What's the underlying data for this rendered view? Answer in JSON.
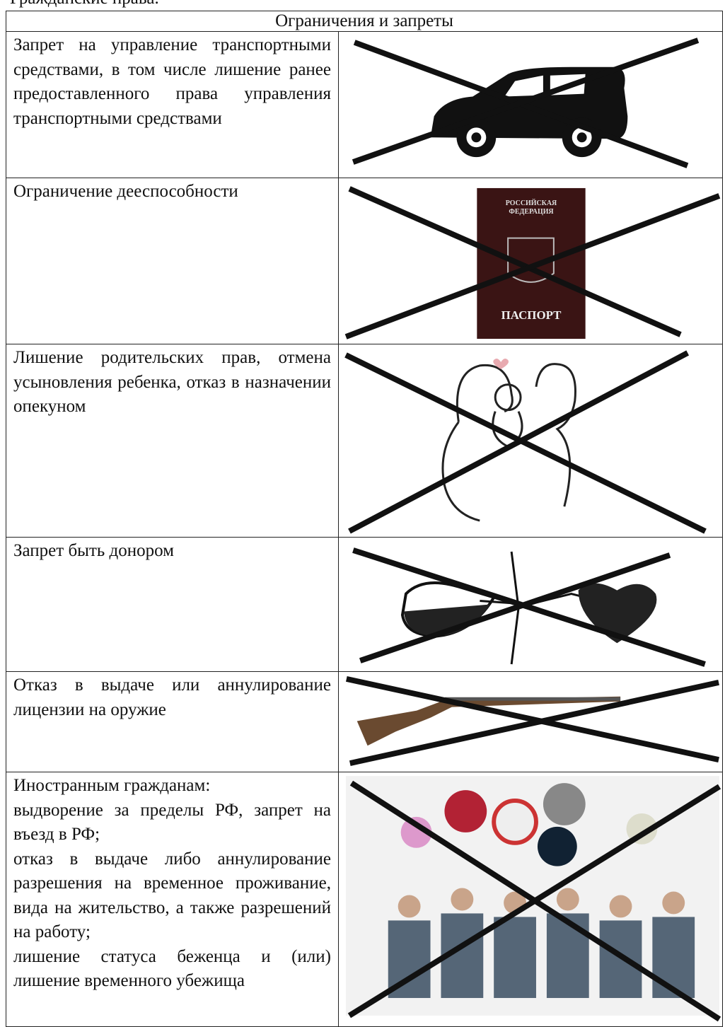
{
  "header_fragment": "Гражданские права.",
  "table": {
    "header": "Ограничения и запреты",
    "rows": [
      {
        "text": [
          "Запрет на управление транспортными средствами, в том числе лишение ранее предоставленного права управления транспортными средствами"
        ]
      },
      {
        "text": [
          "Ограничение дееспособности"
        ]
      },
      {
        "text": [
          "Лишение родительских прав, отмена усыновления ребенка, отказ в назначении опекуном"
        ]
      },
      {
        "text": [
          "Запрет быть донором"
        ]
      },
      {
        "text": [
          "Отказ в выдаче или аннулирование лицензии на оружие"
        ]
      },
      {
        "text": [
          "Иностранным гражданам:",
          "выдворение за пределы РФ, запрет на въезд в РФ;",
          "отказ в выдаче либо аннулирование разрешения на временное проживание, вида на жительство, а также разрешений на работу;",
          "лишение статуса беженца и (или) лишение временного убежища"
        ]
      }
    ]
  },
  "passport": {
    "top": [
      "РОССИЙСКАЯ",
      "ФЕДЕРАЦИЯ"
    ],
    "bottom": "ПАСПОРТ"
  }
}
